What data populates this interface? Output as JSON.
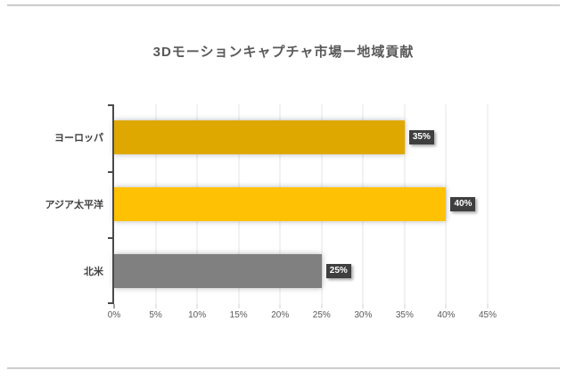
{
  "chart_data": {
    "type": "bar",
    "orientation": "horizontal",
    "title": "3Dモーションキャプチャ市場ー地域貢献",
    "categories": [
      "ヨーロッパ",
      "アジア太平洋",
      "北米"
    ],
    "values": [
      35,
      40,
      25
    ],
    "value_labels": [
      "35%",
      "40%",
      "25%"
    ],
    "series_colors": [
      "#DFA801",
      "#FFC103",
      "#808080"
    ],
    "x_ticks": [
      "0%",
      "5%",
      "10%",
      "15%",
      "20%",
      "25%",
      "30%",
      "35%",
      "40%",
      "45%"
    ],
    "x_tick_values": [
      0,
      5,
      10,
      15,
      20,
      25,
      30,
      35,
      40,
      45
    ],
    "xlim": [
      0,
      45
    ],
    "xlabel": "",
    "ylabel": "",
    "grid": true,
    "legend": false,
    "value_label_style": {
      "background": "#3f3f3f",
      "text": "#ffffff"
    },
    "axis_color": "#4a4a4a",
    "grid_color": "#e5e5e5",
    "title_color": "#595959"
  }
}
